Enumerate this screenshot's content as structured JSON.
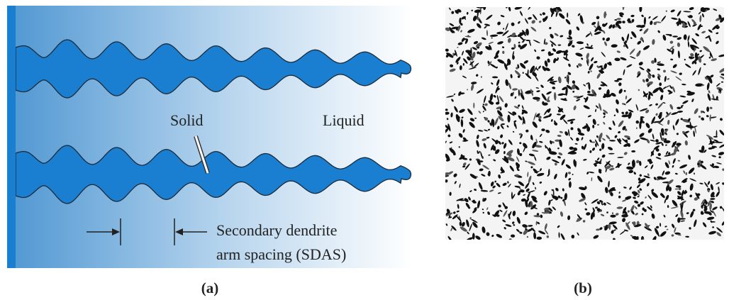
{
  "panels": [
    {
      "caption": "(a)",
      "labels": {
        "solid": "Solid",
        "liquid": "Liquid",
        "sdas_line1": "Secondary dendrite",
        "sdas_line2": "arm spacing (SDAS)"
      }
    },
    {
      "caption": "(b)"
    }
  ]
}
